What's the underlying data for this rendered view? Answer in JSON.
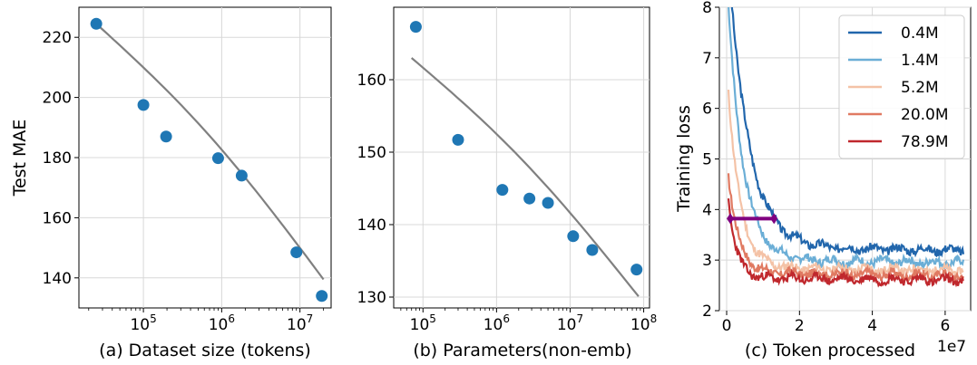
{
  "chart_data": [
    {
      "type": "scatter",
      "xscale": "log",
      "xlim": [
        15000,
        25000000
      ],
      "ylim": [
        130,
        230
      ],
      "yticks": [
        140,
        160,
        180,
        200,
        220
      ],
      "ytick_labels": [
        "140",
        "160",
        "180",
        "200",
        "220"
      ],
      "xticks": [
        100000,
        1000000,
        10000000
      ],
      "xtick_labels": [
        "10^5",
        "10^6",
        "10^7"
      ],
      "xlabel": "(a)  Dataset size (tokens)",
      "ylabel": "Test MAE",
      "grid": true,
      "points": {
        "x": [
          25000,
          100000,
          195000,
          900000,
          1800000,
          9000000,
          19000000
        ],
        "y": [
          224.5,
          197.5,
          187,
          179.8,
          174,
          148.5,
          134
        ]
      },
      "fit": {
        "x": [
          25000,
          20000000
        ],
        "y": [
          224.5,
          139.5
        ]
      },
      "colors": {
        "points": "#1f77b4",
        "fit": "#808080"
      }
    },
    {
      "type": "scatter",
      "xscale": "log",
      "xlim": [
        40000,
        120000000
      ],
      "ylim": [
        128.5,
        170
      ],
      "yticks": [
        130,
        140,
        150,
        160
      ],
      "ytick_labels": [
        "130",
        "140",
        "150",
        "160"
      ],
      "xticks": [
        100000,
        1000000,
        10000000,
        100000000
      ],
      "xtick_labels": [
        "10^5",
        "10^6",
        "10^7",
        "10^8"
      ],
      "xlabel": "(b)  Parameters(non-emb)",
      "ylabel": "",
      "grid": true,
      "points": {
        "x": [
          80000,
          300000,
          1200000,
          2800000,
          5000000,
          11000000,
          20000000,
          80000000
        ],
        "y": [
          167.3,
          151.7,
          144.8,
          143.6,
          143,
          138.4,
          136.5,
          133.8
        ]
      },
      "fit": {
        "x": [
          70000,
          85000000
        ],
        "y": [
          163,
          130.1
        ]
      },
      "colors": {
        "points": "#1f77b4",
        "fit": "#808080"
      }
    },
    {
      "type": "line",
      "xlim": [
        -0.2,
        6.7
      ],
      "ylim": [
        2,
        8
      ],
      "xticks": [
        0,
        2,
        4,
        6
      ],
      "xtick_labels": [
        "0",
        "2",
        "4",
        "6"
      ],
      "yticks": [
        2,
        3,
        4,
        5,
        6,
        7,
        8
      ],
      "ytick_labels": [
        "2",
        "3",
        "4",
        "5",
        "6",
        "7",
        "8"
      ],
      "x_offset_label": "1e7",
      "xlabel": "(c) Token processed",
      "ylabel": "Training loss",
      "grid": true,
      "legend_position": "top-right",
      "series": [
        {
          "name": "0.4M",
          "color": "#2166ac",
          "start": 9.0,
          "decay": 0.55,
          "plateau": 3.25,
          "seed": 3
        },
        {
          "name": "1.4M",
          "color": "#6baed6",
          "start": 8.0,
          "decay": 0.42,
          "plateau": 3.0,
          "seed": 7
        },
        {
          "name": "5.2M",
          "color": "#f4c2a6",
          "start": 6.35,
          "decay": 0.33,
          "plateau": 2.85,
          "seed": 11
        },
        {
          "name": "20.0M",
          "color": "#e07a62",
          "start": 4.7,
          "decay": 0.28,
          "plateau": 2.75,
          "seed": 17
        },
        {
          "name": "78.9M",
          "color": "#c0282d",
          "start": 4.2,
          "decay": 0.22,
          "plateau": 2.65,
          "seed": 23
        }
      ],
      "marker_bar": {
        "x": [
          0.1,
          1.3
        ],
        "y": 3.82,
        "color": "#800080"
      }
    }
  ]
}
